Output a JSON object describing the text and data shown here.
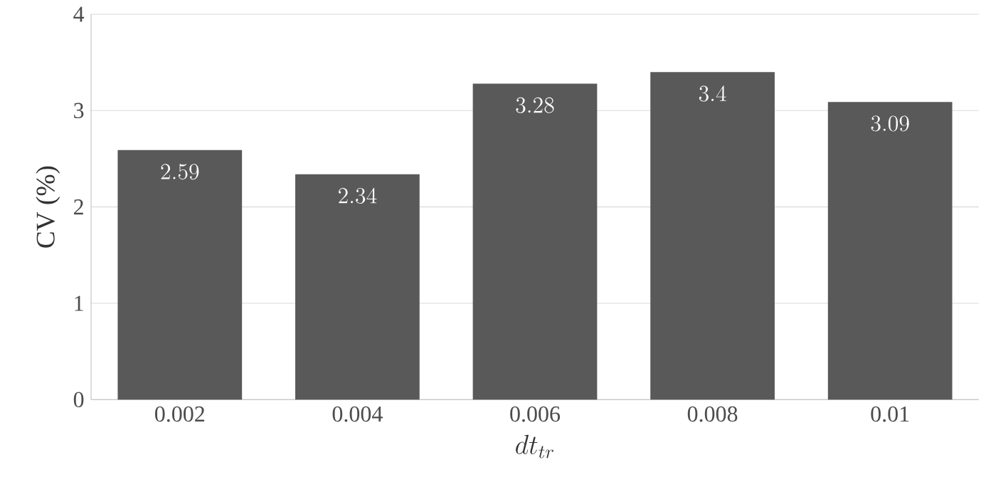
{
  "chart_data": {
    "type": "bar",
    "xlabel": "dt_{tr}",
    "ylabel": "CV (%)",
    "categories": [
      "0.002",
      "0.004",
      "0.006",
      "0.008",
      "0.01"
    ],
    "values": [
      2.59,
      2.34,
      3.28,
      3.4,
      3.09
    ],
    "color": "#595959",
    "ylim": [
      0,
      4
    ],
    "yticks": [
      0,
      1,
      2,
      3,
      4
    ],
    "grid": "y",
    "data_labels": true
  }
}
